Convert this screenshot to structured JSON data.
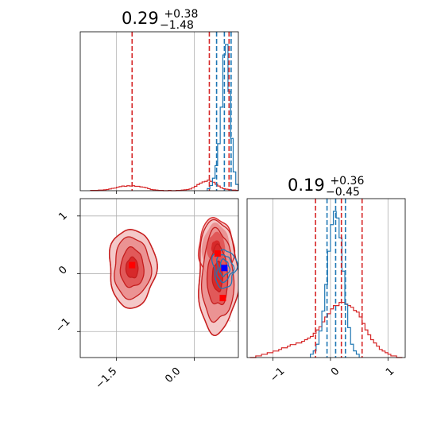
{
  "chart_data": {
    "type": "corner",
    "parameters": [
      {
        "title": {
          "median": "0.29",
          "upper": "+0.38",
          "lower": "−1.48"
        },
        "xlim": [
          -2.2,
          0.85
        ],
        "ticks": [
          -1.5,
          0.0
        ],
        "tick_labels": [
          "−1.5",
          "0.0"
        ]
      },
      {
        "title": {
          "median": "0.19",
          "upper": "+0.36",
          "lower": "−0.45"
        },
        "xlim": [
          -1.45,
          1.3
        ],
        "ticks": [
          -1,
          0,
          1
        ],
        "tick_labels": [
          "−1",
          "0",
          "1"
        ]
      }
    ],
    "series": [
      {
        "name": "",
        "color": "#d62728",
        "hist1_quantiles": [
          -1.2,
          0.29,
          0.67
        ],
        "hist2_quantiles": [
          -0.26,
          0.19,
          0.55
        ],
        "hist1": {
          "bins": [
            -2.0,
            -1.95,
            -1.9,
            -1.85,
            -1.8,
            -1.75,
            -1.7,
            -1.65,
            -1.6,
            -1.55,
            -1.5,
            -1.45,
            -1.4,
            -1.35,
            -1.3,
            -1.25,
            -1.2,
            -1.15,
            -1.1,
            -1.05,
            -1.0,
            -0.95,
            -0.9,
            -0.85,
            -0.8,
            -0.75,
            -0.7,
            -0.65,
            -0.6,
            -0.55,
            -0.5,
            -0.45,
            -0.4,
            -0.35,
            -0.3,
            -0.25,
            -0.2,
            -0.15,
            -0.1,
            -0.05,
            0.0,
            0.05,
            0.1,
            0.15,
            0.2,
            0.25,
            0.3,
            0.35,
            0.4,
            0.45,
            0.5,
            0.55,
            0.6,
            0.65,
            0.7,
            0.75,
            0.8,
            0.85
          ],
          "counts": [
            1,
            1,
            1,
            2,
            2,
            3,
            4,
            6,
            8,
            9,
            12,
            14,
            16,
            15,
            17,
            16,
            17,
            15,
            15,
            13,
            12,
            10,
            7,
            4,
            3,
            2,
            1,
            1,
            0,
            0,
            1,
            0,
            0,
            1,
            1,
            2,
            3,
            4,
            6,
            10,
            15,
            21,
            26,
            30,
            32,
            36,
            32,
            29,
            22,
            16,
            10,
            7,
            5,
            4,
            2,
            2,
            1
          ]
        },
        "hist2": {
          "bins": [
            -1.4,
            -1.35,
            -1.3,
            -1.25,
            -1.2,
            -1.15,
            -1.1,
            -1.05,
            -1.0,
            -0.95,
            -0.9,
            -0.85,
            -0.8,
            -0.75,
            -0.7,
            -0.65,
            -0.6,
            -0.55,
            -0.5,
            -0.45,
            -0.4,
            -0.35,
            -0.3,
            -0.25,
            -0.2,
            -0.15,
            -0.1,
            -0.05,
            0.0,
            0.05,
            0.1,
            0.15,
            0.2,
            0.25,
            0.3,
            0.35,
            0.4,
            0.45,
            0.5,
            0.55,
            0.6,
            0.65,
            0.7,
            0.75,
            0.8,
            0.85,
            0.9,
            0.95,
            1.0,
            1.05,
            1.1,
            1.15,
            1.2,
            1.25
          ],
          "counts": [
            0,
            0,
            1,
            1,
            2,
            2,
            3,
            3,
            4,
            4,
            5,
            6,
            6,
            7,
            8,
            8,
            9,
            9,
            10,
            11,
            12,
            13,
            15,
            17,
            19,
            22,
            25,
            27,
            30,
            32,
            32,
            34,
            34,
            33,
            32,
            31,
            29,
            28,
            25,
            21,
            17,
            14,
            11,
            9,
            7,
            5,
            4,
            3,
            2,
            1,
            1,
            0,
            0
          ]
        },
        "points_2d": [
          {
            "x": -1.2,
            "y": 0.15
          },
          {
            "x": 0.45,
            "y": 0.35
          },
          {
            "x": 0.55,
            "y": -0.42
          }
        ]
      },
      {
        "name": "",
        "color": "#1f77b4",
        "hist1_quantiles": [
          0.43,
          0.58,
          0.71
        ],
        "hist2_quantiles": [
          -0.06,
          0.09,
          0.26
        ],
        "hist1": {
          "bins": [
            0.25,
            0.3,
            0.35,
            0.4,
            0.45,
            0.5,
            0.55,
            0.6,
            0.65,
            0.7,
            0.75,
            0.8,
            0.85
          ],
          "counts": [
            2,
            5,
            12,
            24,
            45,
            80,
            130,
            140,
            95,
            50,
            18,
            6
          ]
        },
        "hist2": {
          "bins": [
            -0.35,
            -0.3,
            -0.25,
            -0.2,
            -0.15,
            -0.1,
            -0.05,
            0.0,
            0.05,
            0.1,
            0.15,
            0.2,
            0.25,
            0.3,
            0.35,
            0.4,
            0.45,
            0.5
          ],
          "counts": [
            1,
            2,
            4,
            8,
            14,
            22,
            32,
            40,
            44,
            42,
            36,
            26,
            16,
            9,
            4,
            2,
            1
          ]
        },
        "points_2d": [
          {
            "x": 0.58,
            "y": 0.1
          }
        ]
      }
    ],
    "grid": true
  }
}
